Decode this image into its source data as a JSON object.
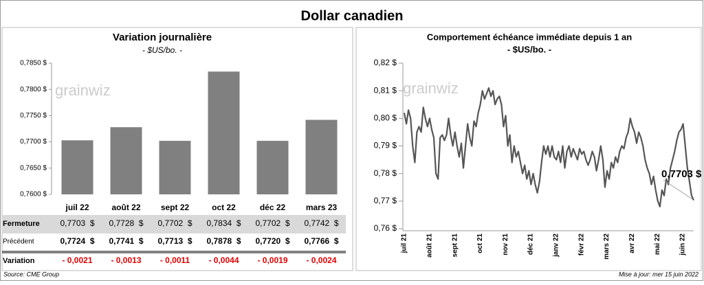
{
  "title": "Dollar canadien",
  "watermark": "grainwiz",
  "source": "Source: CME Group",
  "updated": "Mise à jour: mer 15 juin 2022",
  "chart_data": [
    {
      "type": "bar",
      "title": "Variation  journalière",
      "subtitle": "- $US/bo. -",
      "categories": [
        "juil 22",
        "août 22",
        "sept 22",
        "oct 22",
        "déc 22",
        "mars 23"
      ],
      "values": [
        0.7703,
        0.7728,
        0.7702,
        0.7834,
        0.7702,
        0.7742
      ],
      "value_labels": [
        "0,7703  $",
        "0,7728  $",
        "0,7702  $",
        "0,7834  $",
        "0,7702  $",
        "0,7742  $"
      ],
      "color": "#808080",
      "ylim": [
        0.76,
        0.785
      ],
      "yticks": [
        {
          "value": 0.76,
          "label": "0,7600 $"
        },
        {
          "value": 0.765,
          "label": "0,7650 $"
        },
        {
          "value": 0.77,
          "label": "0,7700 $"
        },
        {
          "value": 0.775,
          "label": "0,7750 $"
        },
        {
          "value": 0.78,
          "label": "0,7800 $"
        },
        {
          "value": 0.785,
          "label": "0,7850 $"
        }
      ],
      "row_names": [
        "Fermeture",
        "Précédent",
        "Variation"
      ],
      "previous_labels": [
        "0,7724  $",
        "0,7741  $",
        "0,7713  $",
        "0,7878  $",
        "0,7720  $",
        "0,7766  $"
      ],
      "change_labels": [
        "- 0,0021",
        "- 0,0013",
        "- 0,0011",
        "- 0,0044",
        "- 0,0019",
        "- 0,0024"
      ]
    },
    {
      "type": "line",
      "title": "Comportement échéance immédiate depuis 1 an",
      "subtitle": "- $US/bo. -",
      "color": "#555555",
      "xtick_labels": [
        "juil 21",
        "août 21",
        "sept 21",
        "oct 21",
        "nov 21",
        "déc 21",
        "janv 22",
        "févr 22",
        "mars 22",
        "avr 22",
        "mai 22",
        "juin 22"
      ],
      "values": [
        0.802,
        0.798,
        0.803,
        0.8,
        0.79,
        0.784,
        0.795,
        0.797,
        0.795,
        0.804,
        0.8,
        0.797,
        0.8,
        0.796,
        0.793,
        0.78,
        0.778,
        0.793,
        0.794,
        0.792,
        0.794,
        0.8,
        0.794,
        0.79,
        0.795,
        0.79,
        0.786,
        0.791,
        0.782,
        0.79,
        0.798,
        0.793,
        0.79,
        0.799,
        0.797,
        0.802,
        0.805,
        0.81,
        0.807,
        0.809,
        0.811,
        0.808,
        0.81,
        0.805,
        0.807,
        0.808,
        0.805,
        0.797,
        0.801,
        0.79,
        0.794,
        0.784,
        0.79,
        0.786,
        0.788,
        0.784,
        0.78,
        0.783,
        0.778,
        0.781,
        0.776,
        0.78,
        0.776,
        0.773,
        0.777,
        0.784,
        0.79,
        0.787,
        0.79,
        0.786,
        0.79,
        0.786,
        0.785,
        0.788,
        0.784,
        0.79,
        0.782,
        0.788,
        0.79,
        0.786,
        0.789,
        0.787,
        0.785,
        0.789,
        0.787,
        0.788,
        0.785,
        0.783,
        0.785,
        0.788,
        0.786,
        0.781,
        0.785,
        0.79,
        0.785,
        0.775,
        0.781,
        0.778,
        0.784,
        0.782,
        0.786,
        0.784,
        0.788,
        0.79,
        0.789,
        0.793,
        0.795,
        0.8,
        0.797,
        0.795,
        0.791,
        0.795,
        0.793,
        0.79,
        0.785,
        0.782,
        0.78,
        0.776,
        0.779,
        0.774,
        0.77,
        0.768,
        0.774,
        0.772,
        0.778,
        0.776,
        0.782,
        0.785,
        0.788,
        0.792,
        0.795,
        0.796,
        0.798,
        0.79,
        0.782,
        0.777,
        0.772,
        0.7703
      ],
      "annotation": "0,7703 $",
      "ylim": [
        0.76,
        0.82
      ],
      "yticks": [
        {
          "value": 0.76,
          "label": "0,76 $"
        },
        {
          "value": 0.77,
          "label": "0,77 $"
        },
        {
          "value": 0.78,
          "label": "0,78 $"
        },
        {
          "value": 0.79,
          "label": "0,79 $"
        },
        {
          "value": 0.8,
          "label": "0,80 $"
        },
        {
          "value": 0.81,
          "label": "0,81 $"
        },
        {
          "value": 0.82,
          "label": "0,82 $"
        }
      ]
    }
  ]
}
